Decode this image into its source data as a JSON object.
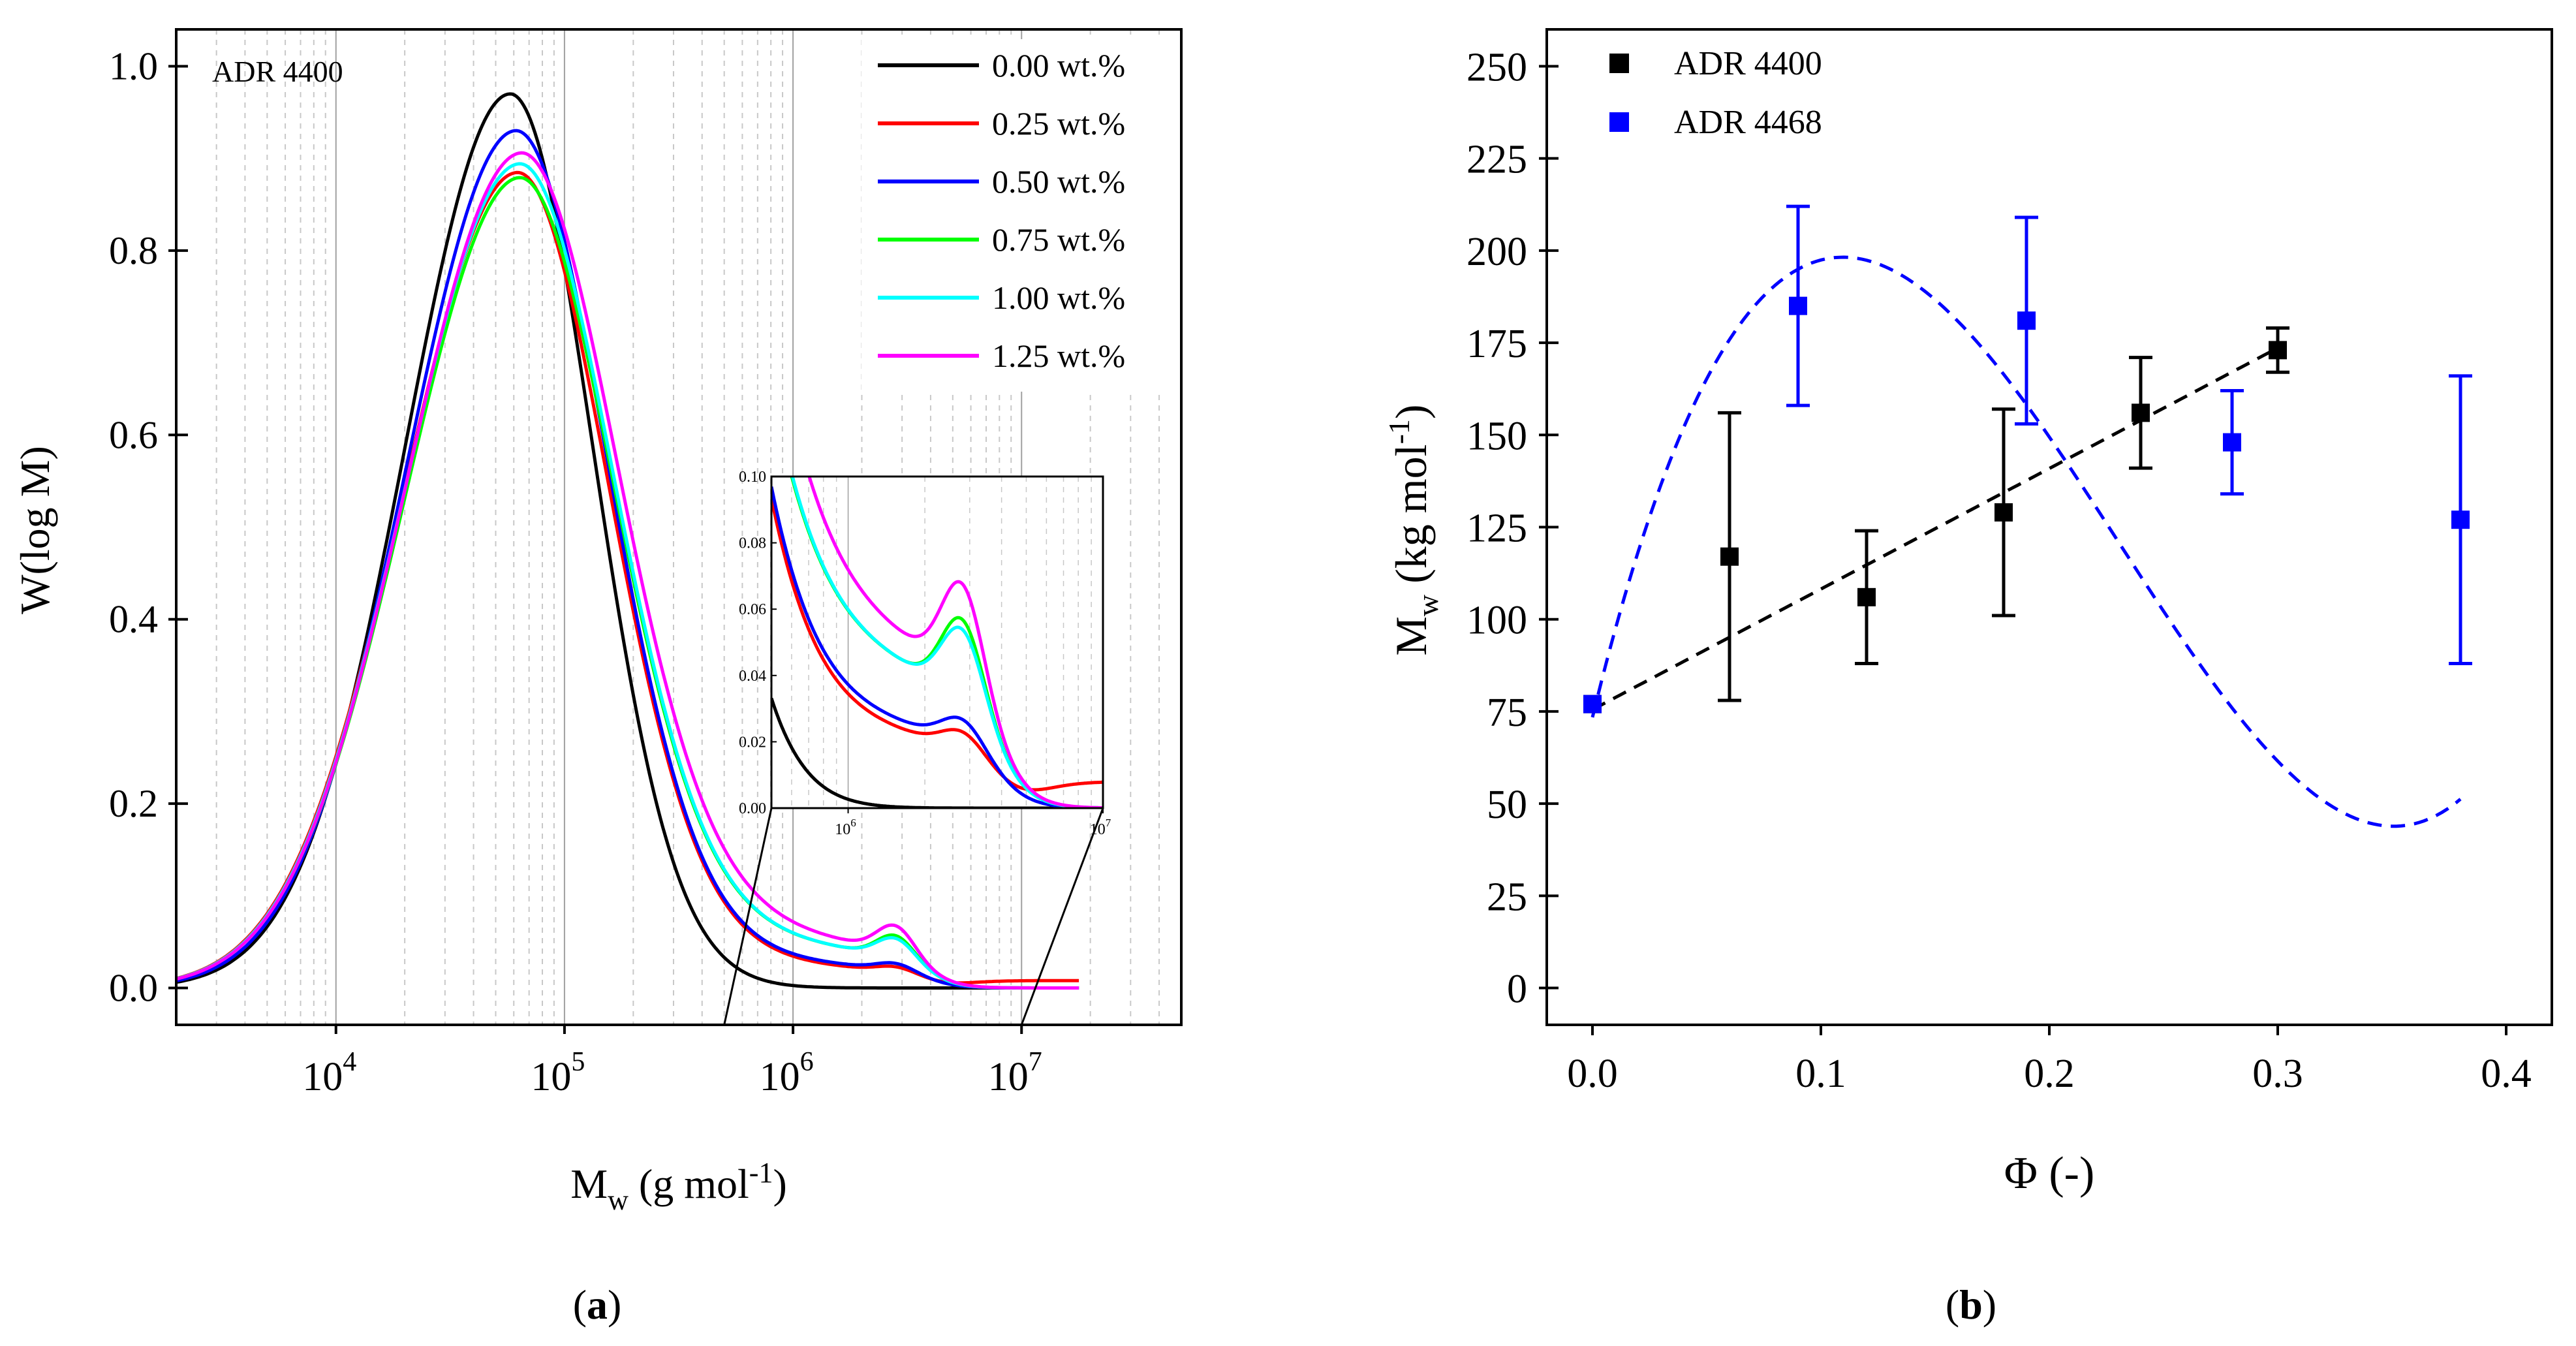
{
  "colors": {
    "s000": "#000000",
    "s025": "#ff0000",
    "s050": "#0000ff",
    "s075": "#00ff00",
    "s100": "#00ffff",
    "s125": "#ff00ff",
    "adr4400": "#000000",
    "adr4468": "#0000ff"
  },
  "chart_data": [
    {
      "id": "a",
      "type": "line",
      "panel_label": "a",
      "title": "",
      "annotation": "ADR 4400",
      "xlabel": "M",
      "xlabel_sub": "w",
      "xlabel_unit": " (g mol",
      "xlabel_sup": "-1",
      "xlabel_close": ")",
      "ylabel": "W(log M)",
      "xscale": "log",
      "xlim": [
        2000,
        50000000
      ],
      "ylim": [
        -0.04,
        1.04
      ],
      "xticks": [
        {
          "value": 10000,
          "base": "10",
          "exp": "4"
        },
        {
          "value": 100000,
          "base": "10",
          "exp": "5"
        },
        {
          "value": 1000000,
          "base": "10",
          "exp": "6"
        },
        {
          "value": 10000000,
          "base": "10",
          "exp": "7"
        }
      ],
      "yticks": [
        {
          "value": 0.0,
          "label": "0.0"
        },
        {
          "value": 0.2,
          "label": "0.2"
        },
        {
          "value": 0.4,
          "label": "0.4"
        },
        {
          "value": 0.6,
          "label": "0.6"
        },
        {
          "value": 0.8,
          "label": "0.8"
        },
        {
          "value": 1.0,
          "label": "1.0"
        }
      ],
      "legend_position": "top-right",
      "series": [
        {
          "name": "0.00 wt.%",
          "color_key": "s000",
          "peak_M": 58000,
          "peak": 0.97,
          "width_left": 0.46,
          "width_right": 0.36,
          "tail": 0.0,
          "shoulder": 0.0,
          "end_value": 0.0
        },
        {
          "name": "0.25 wt.%",
          "color_key": "s025",
          "peak_M": 62000,
          "peak": 0.88,
          "width_left": 0.5,
          "width_right": 0.4,
          "tail": 0.045,
          "shoulder": 0.006,
          "end_value": 0.008
        },
        {
          "name": "0.50 wt.%",
          "color_key": "s050",
          "peak_M": 61000,
          "peak": 0.925,
          "width_left": 0.48,
          "width_right": 0.4,
          "tail": 0.05,
          "shoulder": 0.008,
          "end_value": 0.0
        },
        {
          "name": "0.75 wt.%",
          "color_key": "s075",
          "peak_M": 63000,
          "peak": 0.87,
          "width_left": 0.5,
          "width_right": 0.41,
          "tail": 0.085,
          "shoulder": 0.025,
          "end_value": 0.0
        },
        {
          "name": "1.00 wt.%",
          "color_key": "s100",
          "peak_M": 63000,
          "peak": 0.885,
          "width_left": 0.5,
          "width_right": 0.41,
          "tail": 0.085,
          "shoulder": 0.022,
          "end_value": 0.0
        },
        {
          "name": "1.25 wt.%",
          "color_key": "s125",
          "peak_M": 64000,
          "peak": 0.895,
          "width_left": 0.5,
          "width_right": 0.42,
          "tail": 0.1,
          "shoulder": 0.03,
          "end_value": 0.0
        }
      ],
      "inset": {
        "xlim": [
          500000,
          10000000
        ],
        "ylim": [
          0.0,
          0.1
        ],
        "xticks": [
          {
            "value": 1000000,
            "base": "10",
            "exp": "6"
          },
          {
            "value": 10000000,
            "base": "10",
            "exp": "7"
          }
        ],
        "yticks": [
          {
            "value": 0.0,
            "label": "0.00"
          },
          {
            "value": 0.02,
            "label": "0.02"
          },
          {
            "value": 0.04,
            "label": "0.04"
          },
          {
            "value": 0.06,
            "label": "0.06"
          },
          {
            "value": 0.08,
            "label": "0.08"
          },
          {
            "value": 0.1,
            "label": "0.10"
          }
        ]
      }
    },
    {
      "id": "b",
      "type": "scatter",
      "panel_label": "b",
      "title": "",
      "xlabel": "Φ (-)",
      "ylabel": "M",
      "ylabel_sub": "w",
      "ylabel_unit": " (kg mol",
      "ylabel_sup": "-1",
      "ylabel_close": ")",
      "xlim": [
        -0.02,
        0.42
      ],
      "ylim": [
        -10,
        260
      ],
      "xticks": [
        {
          "value": 0.0,
          "label": "0.0"
        },
        {
          "value": 0.1,
          "label": "0.1"
        },
        {
          "value": 0.2,
          "label": "0.2"
        },
        {
          "value": 0.3,
          "label": "0.3"
        },
        {
          "value": 0.4,
          "label": "0.4"
        }
      ],
      "yticks": [
        {
          "value": 0,
          "label": "0"
        },
        {
          "value": 25,
          "label": "25"
        },
        {
          "value": 50,
          "label": "50"
        },
        {
          "value": 75,
          "label": "75"
        },
        {
          "value": 100,
          "label": "100"
        },
        {
          "value": 125,
          "label": "125"
        },
        {
          "value": 150,
          "label": "150"
        },
        {
          "value": 175,
          "label": "175"
        },
        {
          "value": 200,
          "label": "200"
        },
        {
          "value": 225,
          "label": "225"
        },
        {
          "value": 250,
          "label": "250"
        }
      ],
      "legend_position": "top-left",
      "series": [
        {
          "name": "ADR 4400",
          "color_key": "adr4400",
          "points": [
            {
              "x": 0.0,
              "y": 77,
              "err": 0
            },
            {
              "x": 0.06,
              "y": 117,
              "err": 39
            },
            {
              "x": 0.12,
              "y": 106,
              "err": 18
            },
            {
              "x": 0.18,
              "y": 129,
              "err": 28
            },
            {
              "x": 0.24,
              "y": 156,
              "err": 15
            },
            {
              "x": 0.3,
              "y": 173,
              "err": 6
            }
          ],
          "fit": {
            "type": "linear",
            "x_range": [
              0.0,
              0.3
            ],
            "coef": [
              75.5,
              327
            ]
          }
        },
        {
          "name": "ADR 4468",
          "color_key": "adr4468",
          "points": [
            {
              "x": 0.0,
              "y": 77,
              "err": 0
            },
            {
              "x": 0.09,
              "y": 185,
              "err": 27
            },
            {
              "x": 0.19,
              "y": 181,
              "err": 28
            },
            {
              "x": 0.28,
              "y": 148,
              "err": 14
            },
            {
              "x": 0.38,
              "y": 127,
              "err": 39
            }
          ],
          "fit": {
            "type": "cubic",
            "x_range": [
              0.0,
              0.38
            ],
            "coef": [
              73.4,
              2541,
              -15208,
              22020
            ]
          }
        }
      ]
    }
  ]
}
